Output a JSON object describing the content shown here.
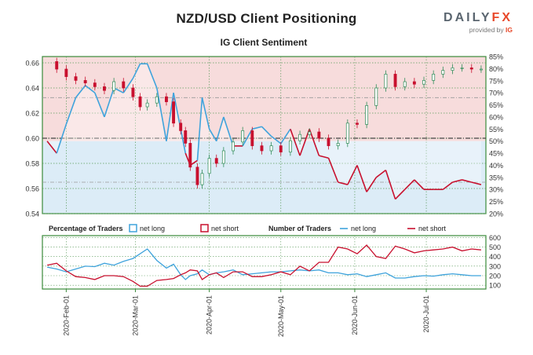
{
  "page": {
    "title": "NZD/USD Client Positioning",
    "brand": {
      "name": "DAILY",
      "name_accent": "FX",
      "provided_by": "provided by",
      "provider": "IG"
    }
  },
  "colors": {
    "long": "#3fa3dc",
    "short": "#c8102e",
    "long_fill": "#dcecf7",
    "short_fill": "#f7dcdc",
    "up_candle": "#2e8b57",
    "down_candle": "#c8102e"
  },
  "chart_data": [
    {
      "type": "line",
      "title": "IG Client Sentiment",
      "description_series": "price candles with net-long percentage overlay",
      "price_axis": {
        "ticks": [
          "0.66",
          "0.64",
          "0.62",
          "0.60",
          "0.58",
          "0.56",
          "0.54"
        ],
        "ylim": [
          0.54,
          0.665
        ]
      },
      "percent_axis": {
        "ticks": [
          "85%",
          "80%",
          "75%",
          "70%",
          "65%",
          "60%",
          "55%",
          "50%",
          "45%",
          "40%",
          "35%",
          "30%",
          "25%",
          "20%"
        ],
        "ylim": [
          20,
          85
        ]
      },
      "reference_lines": {
        "price": 0.6,
        "upper_pct": 68,
        "lower_pct": 33
      },
      "x_labels": [
        "2020-Feb-01",
        "2020-Mar-01",
        "2020-Apr-01",
        "2020-May-01",
        "2020-Jun-01",
        "2020-Jul-01"
      ],
      "x_days": [
        -8,
        0,
        8,
        16,
        24,
        31,
        39,
        47,
        55,
        63,
        70,
        78,
        86,
        94,
        102,
        109,
        117,
        125,
        133,
        141,
        148,
        156,
        164,
        172
      ],
      "price_close": [
        0.66,
        0.652,
        0.648,
        0.645,
        0.642,
        0.648,
        0.641,
        0.652,
        0.664,
        0.625,
        0.617,
        0.575,
        0.598,
        0.582,
        0.586,
        0.596,
        0.609,
        0.602,
        0.598,
        0.599,
        0.603,
        0.601,
        0.612,
        0.622
      ],
      "price_xy": [
        [
          -8,
          0.661
        ],
        [
          -4,
          0.655
        ],
        [
          0,
          0.649
        ],
        [
          4,
          0.646
        ],
        [
          8,
          0.644
        ],
        [
          12,
          0.641
        ],
        [
          16,
          0.638
        ],
        [
          20,
          0.645
        ],
        [
          24,
          0.64
        ],
        [
          28,
          0.633
        ],
        [
          31,
          0.625
        ],
        [
          34,
          0.628
        ],
        [
          38,
          0.633
        ],
        [
          42,
          0.629
        ],
        [
          45,
          0.612
        ],
        [
          48,
          0.606
        ],
        [
          50,
          0.596
        ],
        [
          52,
          0.577
        ],
        [
          55,
          0.563
        ],
        [
          57,
          0.572
        ],
        [
          60,
          0.584
        ],
        [
          63,
          0.58
        ],
        [
          66,
          0.59
        ],
        [
          70,
          0.597
        ],
        [
          74,
          0.606
        ],
        [
          78,
          0.594
        ],
        [
          82,
          0.59
        ],
        [
          86,
          0.594
        ],
        [
          90,
          0.589
        ],
        [
          94,
          0.598
        ],
        [
          98,
          0.603
        ],
        [
          102,
          0.605
        ],
        [
          106,
          0.6
        ],
        [
          110,
          0.594
        ],
        [
          114,
          0.596
        ],
        [
          118,
          0.612
        ],
        [
          122,
          0.611
        ],
        [
          126,
          0.626
        ],
        [
          130,
          0.64
        ],
        [
          134,
          0.651
        ],
        [
          138,
          0.641
        ],
        [
          142,
          0.645
        ],
        [
          146,
          0.643
        ],
        [
          150,
          0.646
        ],
        [
          154,
          0.651
        ],
        [
          158,
          0.654
        ],
        [
          162,
          0.656
        ],
        [
          166,
          0.656
        ],
        [
          170,
          0.655
        ],
        [
          174,
          0.655
        ]
      ],
      "net_long_pct_xy": [
        [
          -8,
          50
        ],
        [
          -4,
          45
        ],
        [
          0,
          57
        ],
        [
          4,
          68
        ],
        [
          8,
          73
        ],
        [
          12,
          70
        ],
        [
          16,
          60
        ],
        [
          20,
          72
        ],
        [
          24,
          70
        ],
        [
          28,
          76
        ],
        [
          31,
          82
        ],
        [
          34,
          82
        ],
        [
          38,
          72
        ],
        [
          42,
          50
        ],
        [
          45,
          70
        ],
        [
          48,
          55
        ],
        [
          50,
          45
        ],
        [
          52,
          40
        ],
        [
          55,
          42
        ],
        [
          57,
          68
        ],
        [
          60,
          55
        ],
        [
          63,
          50
        ],
        [
          66,
          60
        ],
        [
          70,
          48
        ],
        [
          74,
          48
        ],
        [
          78,
          55
        ],
        [
          82,
          56
        ],
        [
          86,
          52
        ],
        [
          90,
          49
        ],
        [
          94,
          55
        ],
        [
          98,
          44
        ],
        [
          102,
          55
        ],
        [
          106,
          44
        ],
        [
          110,
          43
        ],
        [
          114,
          33
        ],
        [
          118,
          32
        ],
        [
          122,
          40
        ],
        [
          126,
          29
        ],
        [
          130,
          35
        ],
        [
          134,
          38
        ],
        [
          138,
          26
        ],
        [
          142,
          30
        ],
        [
          146,
          34
        ],
        [
          150,
          30
        ],
        [
          154,
          30
        ],
        [
          158,
          30
        ],
        [
          162,
          33
        ],
        [
          166,
          34
        ],
        [
          170,
          33
        ],
        [
          174,
          32
        ]
      ]
    },
    {
      "type": "line",
      "legend": {
        "pct_label": "Percentage of Traders",
        "net_long": "net long",
        "net_short": "net short",
        "num_label": "Number of Traders",
        "num_long": "net long",
        "num_short": "net short"
      },
      "y_axis": {
        "ticks": [
          "600",
          "500",
          "400",
          "300",
          "200",
          "100"
        ],
        "ylim": [
          60,
          620
        ]
      },
      "series": [
        {
          "name": "net long",
          "xy": [
            [
              -8,
              290
            ],
            [
              -4,
              270
            ],
            [
              0,
              240
            ],
            [
              4,
              270
            ],
            [
              8,
              300
            ],
            [
              12,
              295
            ],
            [
              16,
              330
            ],
            [
              20,
              310
            ],
            [
              24,
              350
            ],
            [
              28,
              380
            ],
            [
              31,
              430
            ],
            [
              34,
              480
            ],
            [
              38,
              360
            ],
            [
              42,
              280
            ],
            [
              45,
              320
            ],
            [
              48,
              210
            ],
            [
              50,
              160
            ],
            [
              52,
              200
            ],
            [
              55,
              220
            ],
            [
              57,
              260
            ],
            [
              60,
              210
            ],
            [
              63,
              230
            ],
            [
              66,
              240
            ],
            [
              70,
              260
            ],
            [
              74,
              210
            ],
            [
              78,
              220
            ],
            [
              82,
              230
            ],
            [
              86,
              240
            ],
            [
              90,
              240
            ],
            [
              94,
              250
            ],
            [
              98,
              260
            ],
            [
              102,
              250
            ],
            [
              106,
              260
            ],
            [
              110,
              230
            ],
            [
              114,
              230
            ],
            [
              118,
              210
            ],
            [
              122,
              220
            ],
            [
              126,
              190
            ],
            [
              130,
              210
            ],
            [
              134,
              230
            ],
            [
              138,
              175
            ],
            [
              142,
              175
            ],
            [
              146,
              190
            ],
            [
              150,
              200
            ],
            [
              154,
              195
            ],
            [
              158,
              210
            ],
            [
              162,
              220
            ],
            [
              166,
              210
            ],
            [
              170,
              200
            ],
            [
              174,
              200
            ]
          ]
        },
        {
          "name": "net short",
          "xy": [
            [
              -8,
              310
            ],
            [
              -4,
              330
            ],
            [
              0,
              250
            ],
            [
              4,
              190
            ],
            [
              8,
              180
            ],
            [
              12,
              160
            ],
            [
              16,
              200
            ],
            [
              20,
              200
            ],
            [
              24,
              190
            ],
            [
              28,
              140
            ],
            [
              31,
              90
            ],
            [
              34,
              90
            ],
            [
              38,
              150
            ],
            [
              42,
              160
            ],
            [
              45,
              170
            ],
            [
              48,
              210
            ],
            [
              50,
              230
            ],
            [
              52,
              260
            ],
            [
              55,
              250
            ],
            [
              57,
              160
            ],
            [
              60,
              210
            ],
            [
              63,
              230
            ],
            [
              66,
              180
            ],
            [
              70,
              240
            ],
            [
              74,
              240
            ],
            [
              78,
              190
            ],
            [
              82,
              190
            ],
            [
              86,
              210
            ],
            [
              90,
              240
            ],
            [
              94,
              210
            ],
            [
              98,
              300
            ],
            [
              102,
              250
            ],
            [
              106,
              340
            ],
            [
              110,
              340
            ],
            [
              114,
              500
            ],
            [
              118,
              480
            ],
            [
              122,
              430
            ],
            [
              126,
              520
            ],
            [
              130,
              400
            ],
            [
              134,
              380
            ],
            [
              138,
              510
            ],
            [
              142,
              480
            ],
            [
              146,
              440
            ],
            [
              150,
              460
            ],
            [
              154,
              470
            ],
            [
              158,
              480
            ],
            [
              162,
              500
            ],
            [
              166,
              460
            ],
            [
              170,
              480
            ],
            [
              174,
              470
            ]
          ]
        }
      ]
    }
  ]
}
